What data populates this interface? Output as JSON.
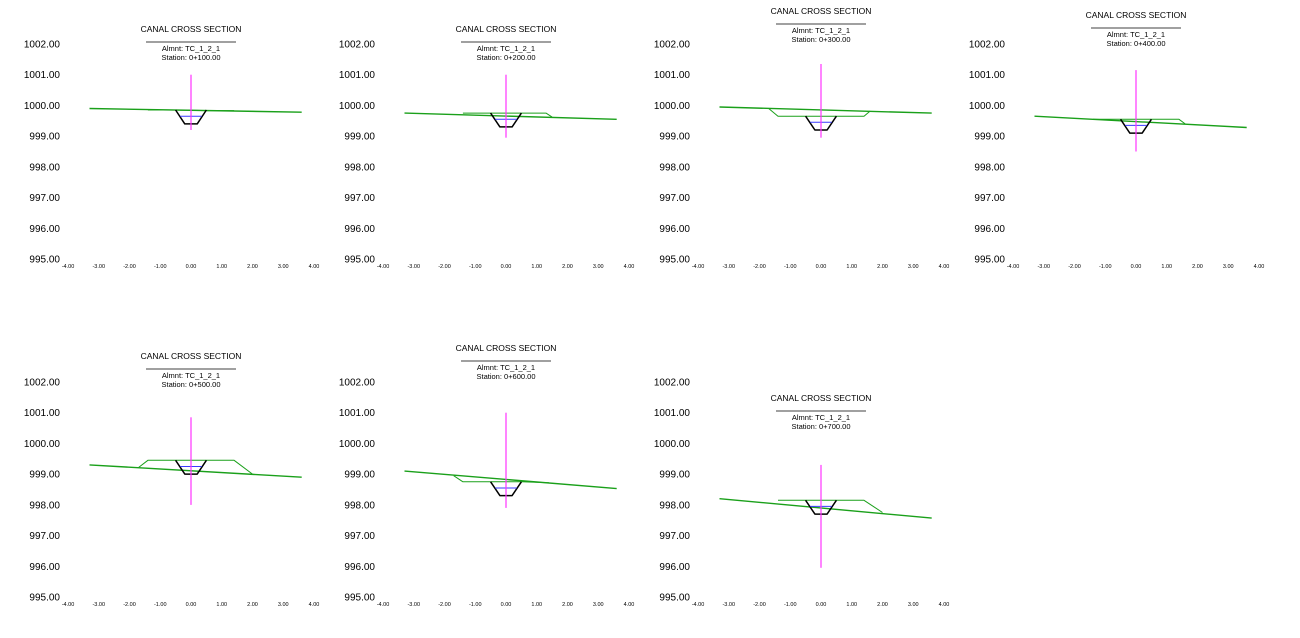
{
  "colors": {
    "ground": "#1aa01a",
    "canal": "#000000",
    "water": "#3a3aff",
    "centerline": "#ff33ff",
    "text": "#000000"
  },
  "common": {
    "title": "CANAL CROSS SECTION",
    "alignment": "Almnt: TC_1_2_1",
    "x_ticks": [
      "-4.00",
      "-3.00",
      "-2.00",
      "-1.00",
      "0.00",
      "1.00",
      "2.00",
      "3.00",
      "4.00"
    ],
    "y_ticks": [
      "1002.00",
      "1001.00",
      "1000.00",
      "999.00",
      "998.00",
      "997.00",
      "996.00",
      "995.00"
    ]
  },
  "chart_data": [
    {
      "type": "line",
      "title": "CANAL CROSS SECTION",
      "alignment": "Almnt: TC_1_2_1",
      "station": "Station: 0+100.00",
      "xlim": [
        -4,
        4
      ],
      "ylim": [
        995,
        1002
      ],
      "series": [
        {
          "name": "natural ground",
          "points": [
            [
              -3.3,
              999.9
            ],
            [
              3.6,
              999.78
            ]
          ]
        },
        {
          "name": "embankment",
          "points": [
            [
              -1.4,
              999.85
            ],
            [
              -0.5,
              999.85
            ],
            [
              0.5,
              999.83
            ],
            [
              1.4,
              999.83
            ]
          ]
        },
        {
          "name": "canal section",
          "points": [
            [
              -0.5,
              999.85
            ],
            [
              -0.2,
              999.4
            ],
            [
              0.2,
              999.4
            ],
            [
              0.5,
              999.85
            ]
          ]
        },
        {
          "name": "water level",
          "points": [
            [
              -0.35,
              999.65
            ],
            [
              0.35,
              999.65
            ]
          ]
        },
        {
          "name": "centerline",
          "points": [
            [
              0,
              1001.0
            ],
            [
              0,
              999.2
            ]
          ]
        }
      ]
    },
    {
      "type": "line",
      "title": "CANAL CROSS SECTION",
      "alignment": "Almnt: TC_1_2_1",
      "station": "Station: 0+200.00",
      "xlim": [
        -4,
        4
      ],
      "ylim": [
        995,
        1002
      ],
      "series": [
        {
          "name": "natural ground",
          "points": [
            [
              -3.3,
              999.75
            ],
            [
              3.6,
              999.55
            ]
          ]
        },
        {
          "name": "embankment",
          "points": [
            [
              -1.4,
              999.75
            ],
            [
              -0.5,
              999.75
            ],
            [
              0.5,
              999.75
            ],
            [
              1.3,
              999.75
            ],
            [
              1.5,
              999.62
            ]
          ]
        },
        {
          "name": "canal section",
          "points": [
            [
              -0.5,
              999.75
            ],
            [
              -0.2,
              999.3
            ],
            [
              0.2,
              999.3
            ],
            [
              0.5,
              999.75
            ]
          ]
        },
        {
          "name": "water level",
          "points": [
            [
              -0.35,
              999.55
            ],
            [
              0.35,
              999.55
            ]
          ]
        },
        {
          "name": "centerline",
          "points": [
            [
              0,
              1001.0
            ],
            [
              0,
              998.95
            ]
          ]
        }
      ]
    },
    {
      "type": "line",
      "title": "CANAL CROSS SECTION",
      "alignment": "Almnt: TC_1_2_1",
      "station": "Station: 0+300.00",
      "xlim": [
        -4,
        4
      ],
      "ylim": [
        995,
        1002
      ],
      "series": [
        {
          "name": "natural ground",
          "points": [
            [
              -3.3,
              999.95
            ],
            [
              3.6,
              999.75
            ]
          ]
        },
        {
          "name": "embankment",
          "points": [
            [
              -1.7,
              999.9
            ],
            [
              -1.4,
              999.65
            ],
            [
              -0.5,
              999.65
            ],
            [
              0.5,
              999.65
            ],
            [
              1.4,
              999.65
            ],
            [
              1.6,
              999.82
            ]
          ]
        },
        {
          "name": "canal section",
          "points": [
            [
              -0.5,
              999.65
            ],
            [
              -0.2,
              999.2
            ],
            [
              0.2,
              999.2
            ],
            [
              0.5,
              999.65
            ]
          ]
        },
        {
          "name": "water level",
          "points": [
            [
              -0.35,
              999.45
            ],
            [
              0.35,
              999.45
            ]
          ]
        },
        {
          "name": "centerline",
          "points": [
            [
              0,
              1001.35
            ],
            [
              0,
              998.95
            ]
          ]
        }
      ]
    },
    {
      "type": "line",
      "title": "CANAL CROSS SECTION",
      "alignment": "Almnt: TC_1_2_1",
      "station": "Station: 0+400.00",
      "xlim": [
        -4,
        4
      ],
      "ylim": [
        995,
        1002
      ],
      "series": [
        {
          "name": "natural ground",
          "points": [
            [
              -3.3,
              999.65
            ],
            [
              3.6,
              999.28
            ]
          ]
        },
        {
          "name": "embankment",
          "points": [
            [
              -1.4,
              999.55
            ],
            [
              -0.5,
              999.55
            ],
            [
              0.5,
              999.55
            ],
            [
              1.4,
              999.55
            ],
            [
              1.6,
              999.4
            ]
          ]
        },
        {
          "name": "canal section",
          "points": [
            [
              -0.5,
              999.55
            ],
            [
              -0.2,
              999.1
            ],
            [
              0.2,
              999.1
            ],
            [
              0.5,
              999.55
            ]
          ]
        },
        {
          "name": "water level",
          "points": [
            [
              -0.35,
              999.35
            ],
            [
              0.35,
              999.35
            ]
          ]
        },
        {
          "name": "centerline",
          "points": [
            [
              0,
              1001.15
            ],
            [
              0,
              998.5
            ]
          ]
        }
      ]
    },
    {
      "type": "line",
      "title": "CANAL CROSS SECTION",
      "alignment": "Almnt: TC_1_2_1",
      "station": "Station: 0+500.00",
      "xlim": [
        -4,
        4
      ],
      "ylim": [
        995,
        1002
      ],
      "series": [
        {
          "name": "natural ground",
          "points": [
            [
              -3.3,
              999.3
            ],
            [
              3.6,
              998.9
            ]
          ]
        },
        {
          "name": "embankment",
          "points": [
            [
              -1.7,
              999.22
            ],
            [
              -1.4,
              999.45
            ],
            [
              -0.5,
              999.45
            ],
            [
              0.5,
              999.45
            ],
            [
              1.4,
              999.45
            ],
            [
              2.0,
              999.0
            ]
          ]
        },
        {
          "name": "canal section",
          "points": [
            [
              -0.5,
              999.45
            ],
            [
              -0.2,
              999.0
            ],
            [
              0.2,
              999.0
            ],
            [
              0.5,
              999.45
            ]
          ]
        },
        {
          "name": "water level",
          "points": [
            [
              -0.35,
              999.25
            ],
            [
              0.35,
              999.25
            ]
          ]
        },
        {
          "name": "centerline",
          "points": [
            [
              0,
              1000.85
            ],
            [
              0,
              998.0
            ]
          ]
        }
      ]
    },
    {
      "type": "line",
      "title": "CANAL CROSS SECTION",
      "alignment": "Almnt: TC_1_2_1",
      "station": "Station: 0+600.00",
      "xlim": [
        -4,
        4
      ],
      "ylim": [
        995,
        1002
      ],
      "series": [
        {
          "name": "natural ground",
          "points": [
            [
              -3.3,
              999.1
            ],
            [
              3.6,
              998.53
            ]
          ]
        },
        {
          "name": "embankment",
          "points": [
            [
              -1.7,
              998.95
            ],
            [
              -1.4,
              998.75
            ],
            [
              -0.5,
              998.75
            ],
            [
              0.5,
              998.75
            ],
            [
              1.4,
              998.72
            ]
          ]
        },
        {
          "name": "canal section",
          "points": [
            [
              -0.5,
              998.75
            ],
            [
              -0.2,
              998.3
            ],
            [
              0.2,
              998.3
            ],
            [
              0.5,
              998.75
            ]
          ]
        },
        {
          "name": "water level",
          "points": [
            [
              -0.35,
              998.55
            ],
            [
              0.35,
              998.55
            ]
          ]
        },
        {
          "name": "centerline",
          "points": [
            [
              0,
              1001.0
            ],
            [
              0,
              997.9
            ]
          ]
        }
      ]
    },
    {
      "type": "line",
      "title": "CANAL CROSS SECTION",
      "alignment": "Almnt: TC_1_2_1",
      "station": "Station: 0+700.00",
      "xlim": [
        -4,
        4
      ],
      "ylim": [
        995,
        1002
      ],
      "series": [
        {
          "name": "natural ground",
          "points": [
            [
              -3.3,
              998.2
            ],
            [
              3.6,
              997.57
            ]
          ]
        },
        {
          "name": "embankment",
          "points": [
            [
              -1.4,
              998.15
            ],
            [
              -0.5,
              998.15
            ],
            [
              0.5,
              998.15
            ],
            [
              1.4,
              998.15
            ],
            [
              2.0,
              997.75
            ]
          ]
        },
        {
          "name": "canal section",
          "points": [
            [
              -0.5,
              998.15
            ],
            [
              -0.2,
              997.7
            ],
            [
              0.2,
              997.7
            ],
            [
              0.5,
              998.15
            ]
          ]
        },
        {
          "name": "water level",
          "points": [
            [
              -0.35,
              997.95
            ],
            [
              0.35,
              997.95
            ]
          ]
        },
        {
          "name": "centerline",
          "points": [
            [
              0,
              999.3
            ],
            [
              0,
              995.95
            ]
          ]
        }
      ]
    }
  ]
}
